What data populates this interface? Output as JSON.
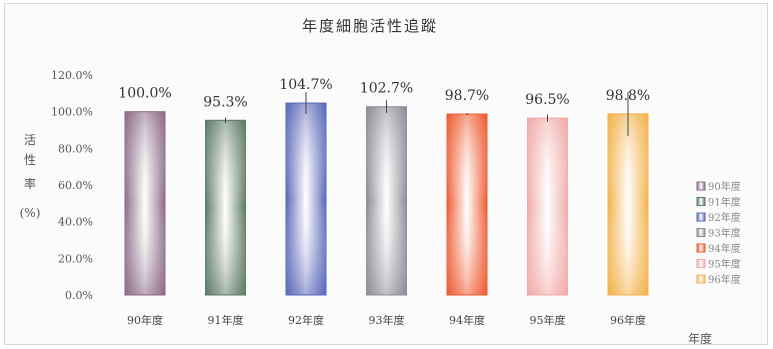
{
  "chart_data": {
    "type": "bar",
    "title": "年度細胞活性追蹤",
    "xlabel": "年度",
    "ylabel": [
      "活",
      "性",
      "率",
      "(%)"
    ],
    "categories": [
      "90年度",
      "91年度",
      "92年度",
      "93年度",
      "94年度",
      "95年度",
      "96年度"
    ],
    "values": [
      100.0,
      95.3,
      104.7,
      102.7,
      98.7,
      96.5,
      98.8
    ],
    "value_labels": [
      "100.0%",
      "95.3%",
      "104.7%",
      "102.7%",
      "98.7%",
      "96.5%",
      "98.8%"
    ],
    "error_high": [
      0.0,
      1.5,
      6.0,
      3.5,
      0.5,
      2.0,
      12.0
    ],
    "error_low": [
      0.0,
      1.5,
      6.0,
      3.5,
      0.5,
      2.0,
      12.0
    ],
    "ylim": [
      0,
      120
    ],
    "yticks": [
      "0.0%",
      "20.0%",
      "40.0%",
      "60.0%",
      "80.0%",
      "100.0%",
      "120.0%"
    ],
    "grid": false,
    "legend": {
      "position": "right",
      "entries": [
        "90年度",
        "91年度",
        "92年度",
        "93年度",
        "94年度",
        "95年度",
        "96年度"
      ]
    },
    "colors": [
      "#8a6a86",
      "#5e7a66",
      "#5a66b8",
      "#8c8c96",
      "#ee5a30",
      "#f0aaa8",
      "#f2b24a"
    ]
  }
}
